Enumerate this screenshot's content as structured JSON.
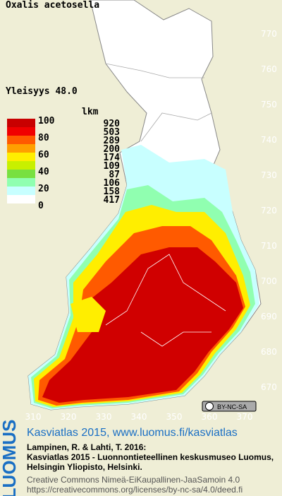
{
  "map": {
    "title": "Oxalis acetosella",
    "frequency": "Yleisyys  48.0",
    "legend": {
      "count_header": "lkm",
      "levels": [
        100,
        80,
        60,
        40,
        20,
        0
      ],
      "colors": [
        "#c80000",
        "#f00000",
        "#ff5a00",
        "#ffa000",
        "#ffee00",
        "#c8f000",
        "#78e040",
        "#90ffb0",
        "#c8ffff",
        "#ffffff"
      ],
      "counts": [
        920,
        503,
        289,
        200,
        174,
        109,
        87,
        106,
        158,
        417
      ]
    },
    "yticks": [
      770,
      760,
      750,
      740,
      730,
      720,
      710,
      700,
      690,
      680,
      670
    ],
    "xticks": [
      310,
      320,
      330,
      340,
      350,
      360,
      370
    ],
    "license_badge": "BY-NC-SA"
  },
  "footer": {
    "logo": "LUOMUS",
    "headline": "Kasviatlas 2015, www.luomus.fi/kasviatlas",
    "citation": [
      "Lampinen, R. & Lahti, T. 2016:",
      "Kasviatlas 2015 - Luonnontieteellinen keskusmuseo Luomus,",
      "Helsingin Yliopisto, Helsinki."
    ],
    "license": [
      "Creative Commons Nimeä-EiKaupallinen-JaaSamoin 4.0",
      "https://creativecommons.org/licenses/by-nc-sa/4.0/deed.fi"
    ]
  }
}
